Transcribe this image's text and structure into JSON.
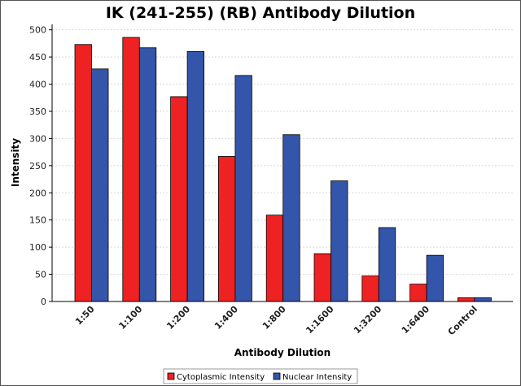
{
  "chart_data": {
    "type": "bar",
    "title": "IK (241-255) (RB) Antibody Dilution",
    "xlabel": "Antibody Dilution",
    "ylabel": "Intensity",
    "ylim": [
      0,
      510
    ],
    "yticks": [
      0,
      50,
      100,
      150,
      200,
      250,
      300,
      350,
      400,
      450,
      500
    ],
    "grid": true,
    "legend_position": "bottom-center",
    "categories": [
      "1:50",
      "1:100",
      "1:200",
      "1:400",
      "1:800",
      "1:1600",
      "1:3200",
      "1:6400",
      "Control"
    ],
    "series": [
      {
        "name": "Cytoplasmic Intensity",
        "color": "#ee2222",
        "values": [
          473,
          486,
          377,
          267,
          159,
          88,
          47,
          32,
          7
        ]
      },
      {
        "name": "Nuclear Intensity",
        "color": "#3355aa",
        "values": [
          428,
          467,
          460,
          416,
          307,
          222,
          136,
          85,
          7
        ]
      }
    ]
  }
}
